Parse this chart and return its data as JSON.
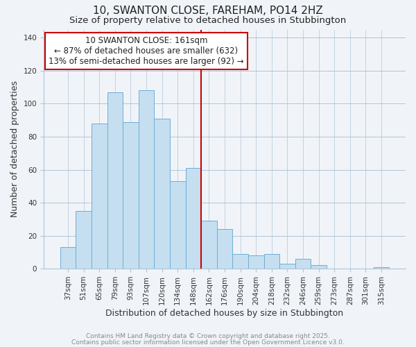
{
  "title_line1": "10, SWANTON CLOSE, FAREHAM, PO14 2HZ",
  "title_line2": "Size of property relative to detached houses in Stubbington",
  "xlabel": "Distribution of detached houses by size in Stubbington",
  "ylabel": "Number of detached properties",
  "bar_labels": [
    "37sqm",
    "51sqm",
    "65sqm",
    "79sqm",
    "93sqm",
    "107sqm",
    "120sqm",
    "134sqm",
    "148sqm",
    "162sqm",
    "176sqm",
    "190sqm",
    "204sqm",
    "218sqm",
    "232sqm",
    "246sqm",
    "259sqm",
    "273sqm",
    "287sqm",
    "301sqm",
    "315sqm"
  ],
  "bar_heights": [
    13,
    35,
    88,
    107,
    89,
    108,
    91,
    53,
    61,
    29,
    24,
    9,
    8,
    9,
    3,
    6,
    2,
    0,
    0,
    0,
    1
  ],
  "bar_color": "#c5dff0",
  "bar_edge_color": "#6baed6",
  "vline_x_index": 9,
  "vline_color": "#cc0000",
  "annotation_text": "10 SWANTON CLOSE: 161sqm\n← 87% of detached houses are smaller (632)\n13% of semi-detached houses are larger (92) →",
  "annotation_box_color": "#ffffff",
  "annotation_box_edge_color": "#cc0000",
  "ylim": [
    0,
    145
  ],
  "yticks": [
    0,
    20,
    40,
    60,
    80,
    100,
    120,
    140
  ],
  "footnote_line1": "Contains HM Land Registry data © Crown copyright and database right 2025.",
  "footnote_line2": "Contains public sector information licensed under the Open Government Licence v3.0.",
  "background_color": "#f0f4f8",
  "grid_color": "#b0c4d8",
  "title_fontsize": 11,
  "subtitle_fontsize": 9.5,
  "axis_label_fontsize": 9,
  "tick_fontsize": 7.5,
  "annotation_fontsize": 8.5,
  "footnote_fontsize": 6.5
}
